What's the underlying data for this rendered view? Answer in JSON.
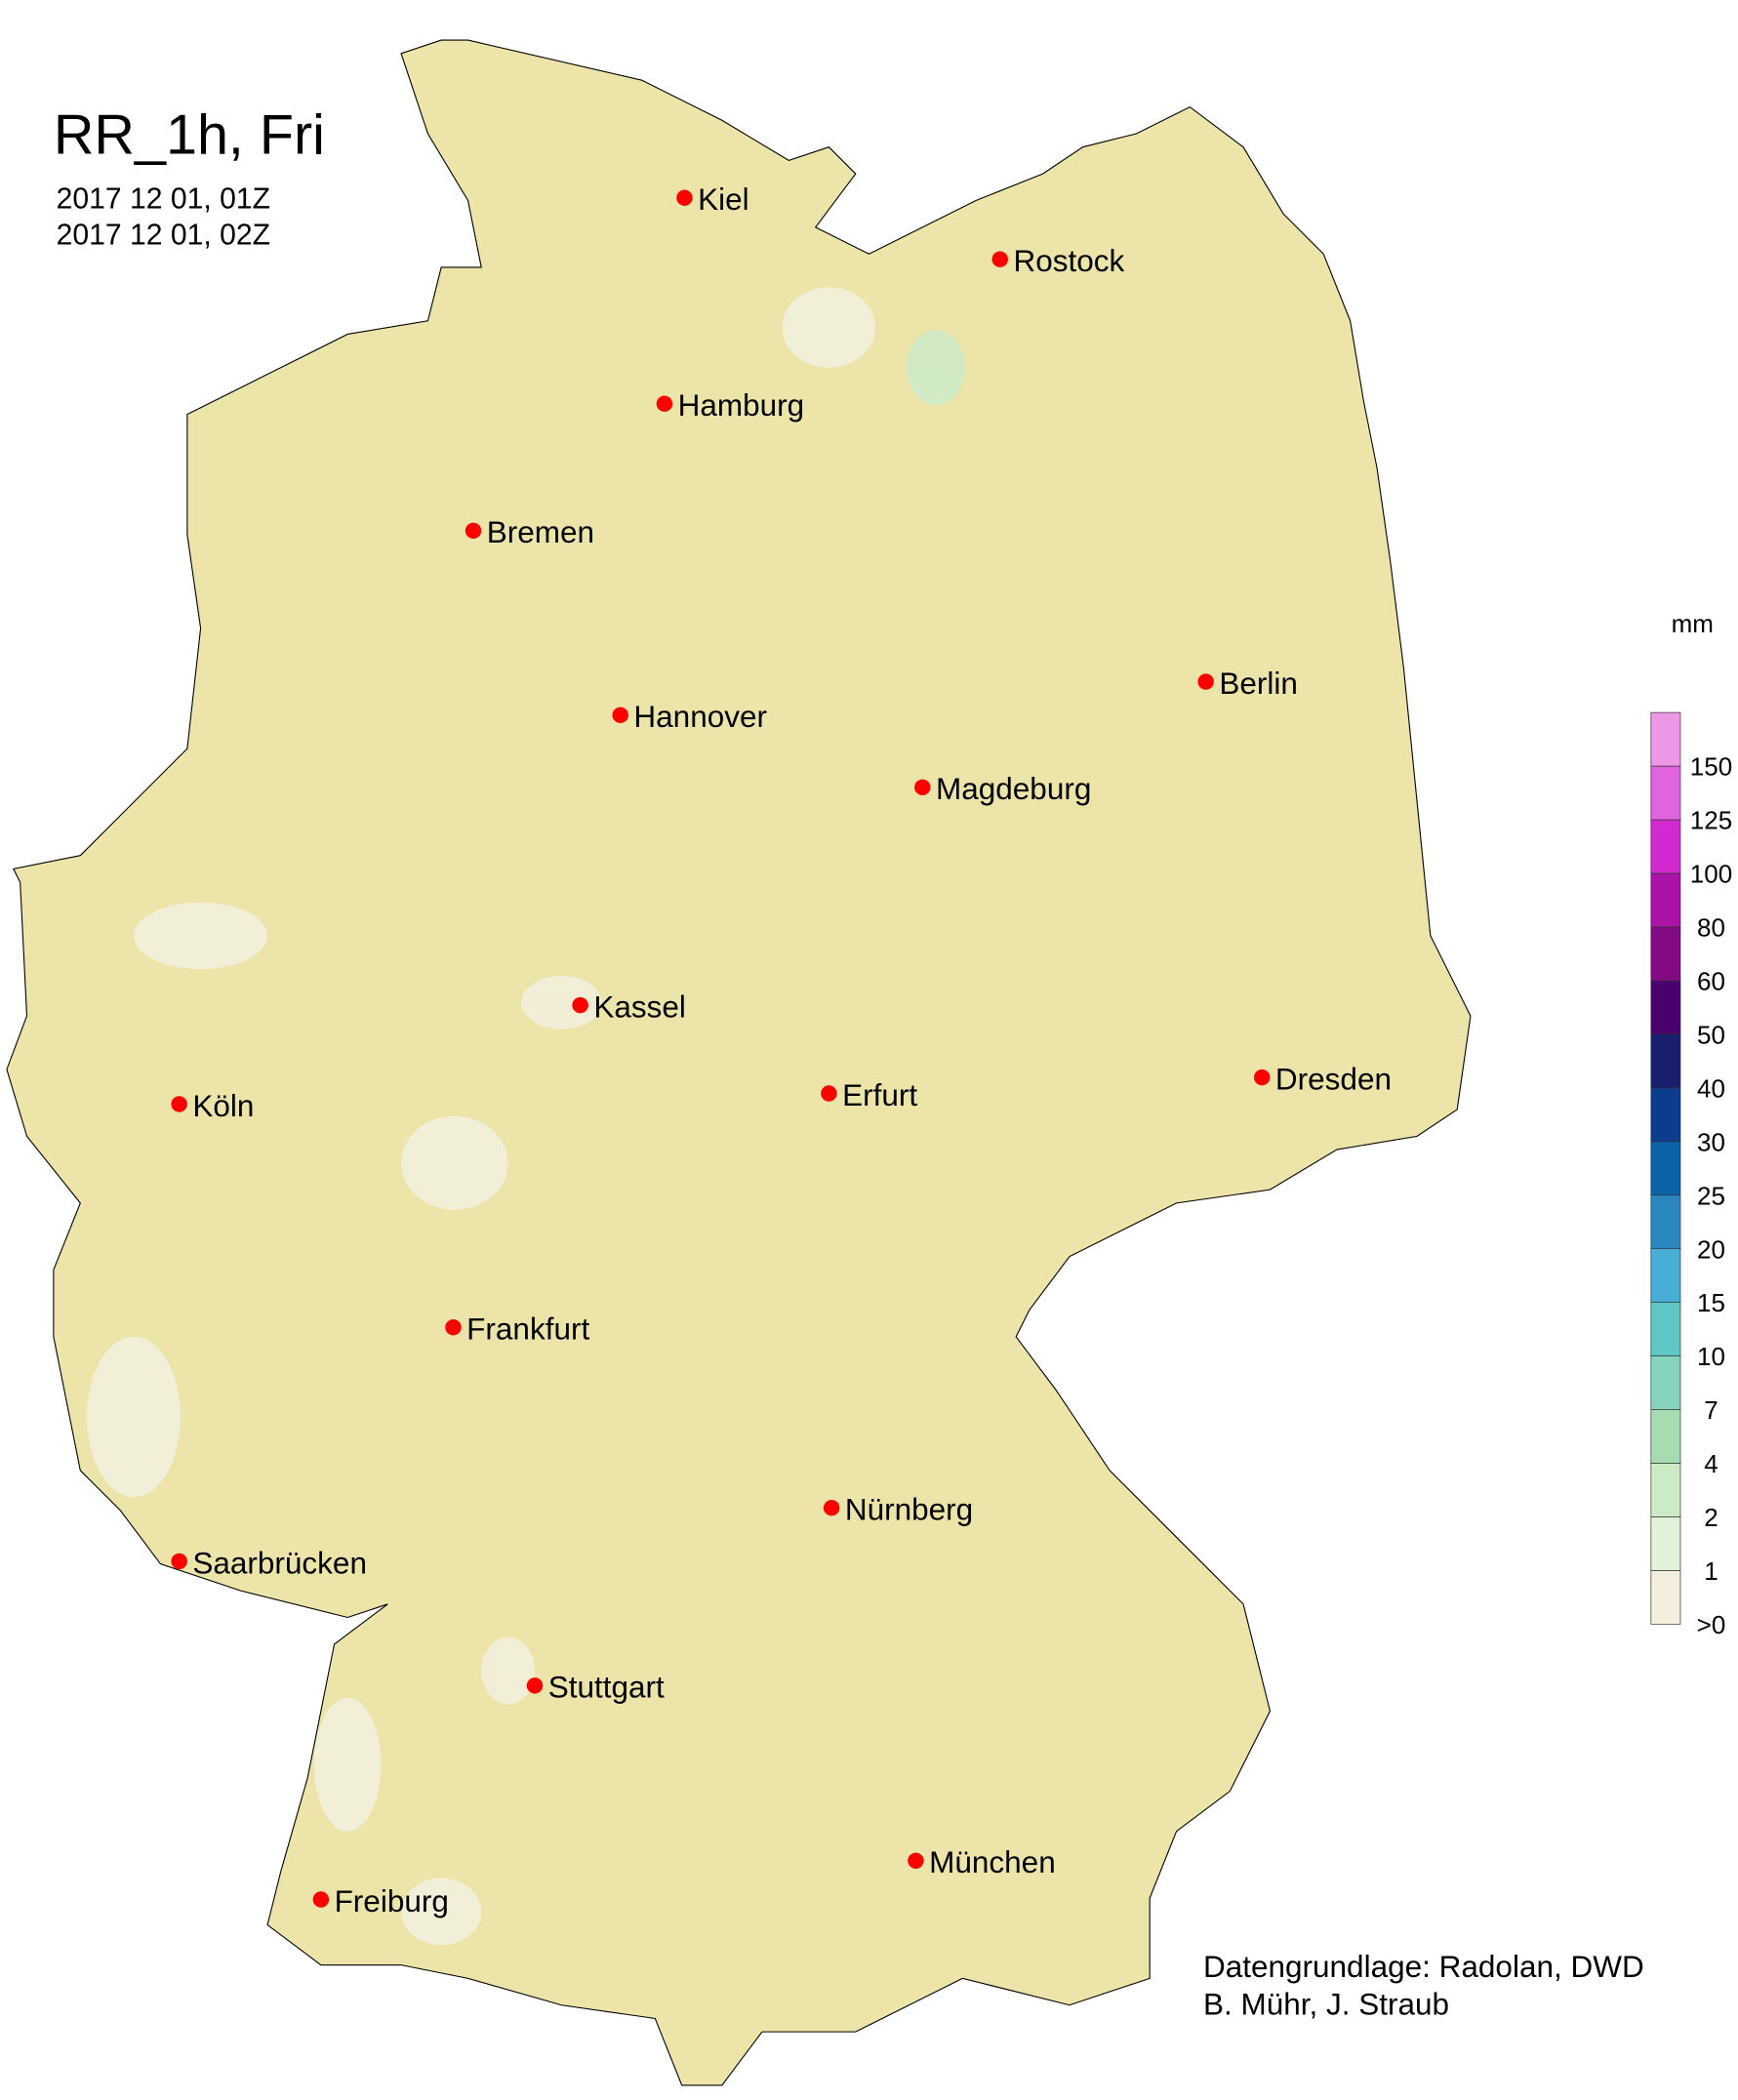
{
  "title": "RR_1h, Fri",
  "period": {
    "start": "2017 12 01, 01Z",
    "end": "2017 12 01, 02Z"
  },
  "legend": {
    "unit": "mm",
    "labels": [
      ">0",
      "1",
      "2",
      "4",
      "7",
      "10",
      "15",
      "20",
      "25",
      "30",
      "40",
      "50",
      "60",
      "80",
      "100",
      "125",
      "150"
    ],
    "colors": [
      "#f2efdc",
      "#e0f2d8",
      "#cdeac6",
      "#a7dbb2",
      "#87d4be",
      "#5fc6c4",
      "#49aed6",
      "#2a87bf",
      "#0c63a8",
      "#0b3c8f",
      "#181f6e",
      "#4b006f",
      "#830a82",
      "#ad12a8",
      "#d22ad0",
      "#e063e0",
      "#ec98e6"
    ]
  },
  "map": {
    "land_color": "#ece4a8",
    "city_marker_color": "#ff0000",
    "cities": [
      "Kiel",
      "Rostock",
      "Hamburg",
      "Bremen",
      "Berlin",
      "Hannover",
      "Magdeburg",
      "Kassel",
      "Dresden",
      "Köln",
      "Erfurt",
      "Frankfurt",
      "Nürnberg",
      "Saarbrücken",
      "Stuttgart",
      "München",
      "Freiburg"
    ]
  },
  "credits": {
    "line1": "Datengrundlage: Radolan, DWD",
    "line2": "B. Mühr, J. Straub"
  }
}
